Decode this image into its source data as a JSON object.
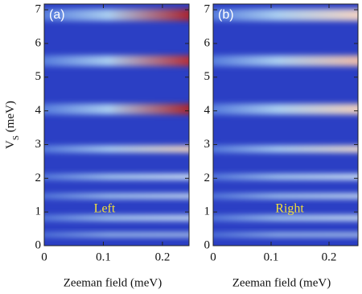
{
  "chart_data": [
    {
      "type": "heatmap",
      "panel_label": "(a)",
      "annotation": "Left",
      "xlabel": "Zeeman field (meV)",
      "ylabel_parts": [
        "V",
        "S",
        " (meV)"
      ],
      "xlim": [
        0,
        0.245
      ],
      "xticks": [
        0,
        0.1,
        0.2
      ],
      "ylim": [
        0,
        7.17
      ],
      "yticks": [
        0,
        1,
        2,
        3,
        4,
        5,
        6,
        7
      ]
    },
    {
      "type": "heatmap",
      "panel_label": "(b)",
      "annotation": "Right",
      "xlabel": "Zeeman field (meV)",
      "xlim": [
        0,
        0.25
      ],
      "xticks": [
        0,
        0.1,
        0.2
      ],
      "ylim": [
        0,
        7.17
      ],
      "yticks": [
        0,
        1,
        2,
        3,
        4,
        5,
        6,
        7
      ]
    }
  ]
}
